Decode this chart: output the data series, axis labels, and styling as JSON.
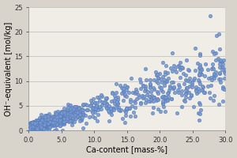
{
  "title": "",
  "xlabel": "Ca-content [mass-%]",
  "ylabel": "OH⁻-equivalent [mol/kg]",
  "xlim": [
    0,
    30
  ],
  "ylim": [
    0,
    25
  ],
  "xticks": [
    0.0,
    5.0,
    10.0,
    15.0,
    20.0,
    25.0,
    30.0
  ],
  "yticks": [
    0,
    5,
    10,
    15,
    20,
    25
  ],
  "marker_color": "#7799cc",
  "marker_edge_color": "#5577bb",
  "fig_bg_color": "#d8d4cc",
  "plot_bg_color": "#f0ede6",
  "grid_color": "#c8c8c8",
  "marker_size": 10,
  "seed": 42,
  "n_points": 1501
}
